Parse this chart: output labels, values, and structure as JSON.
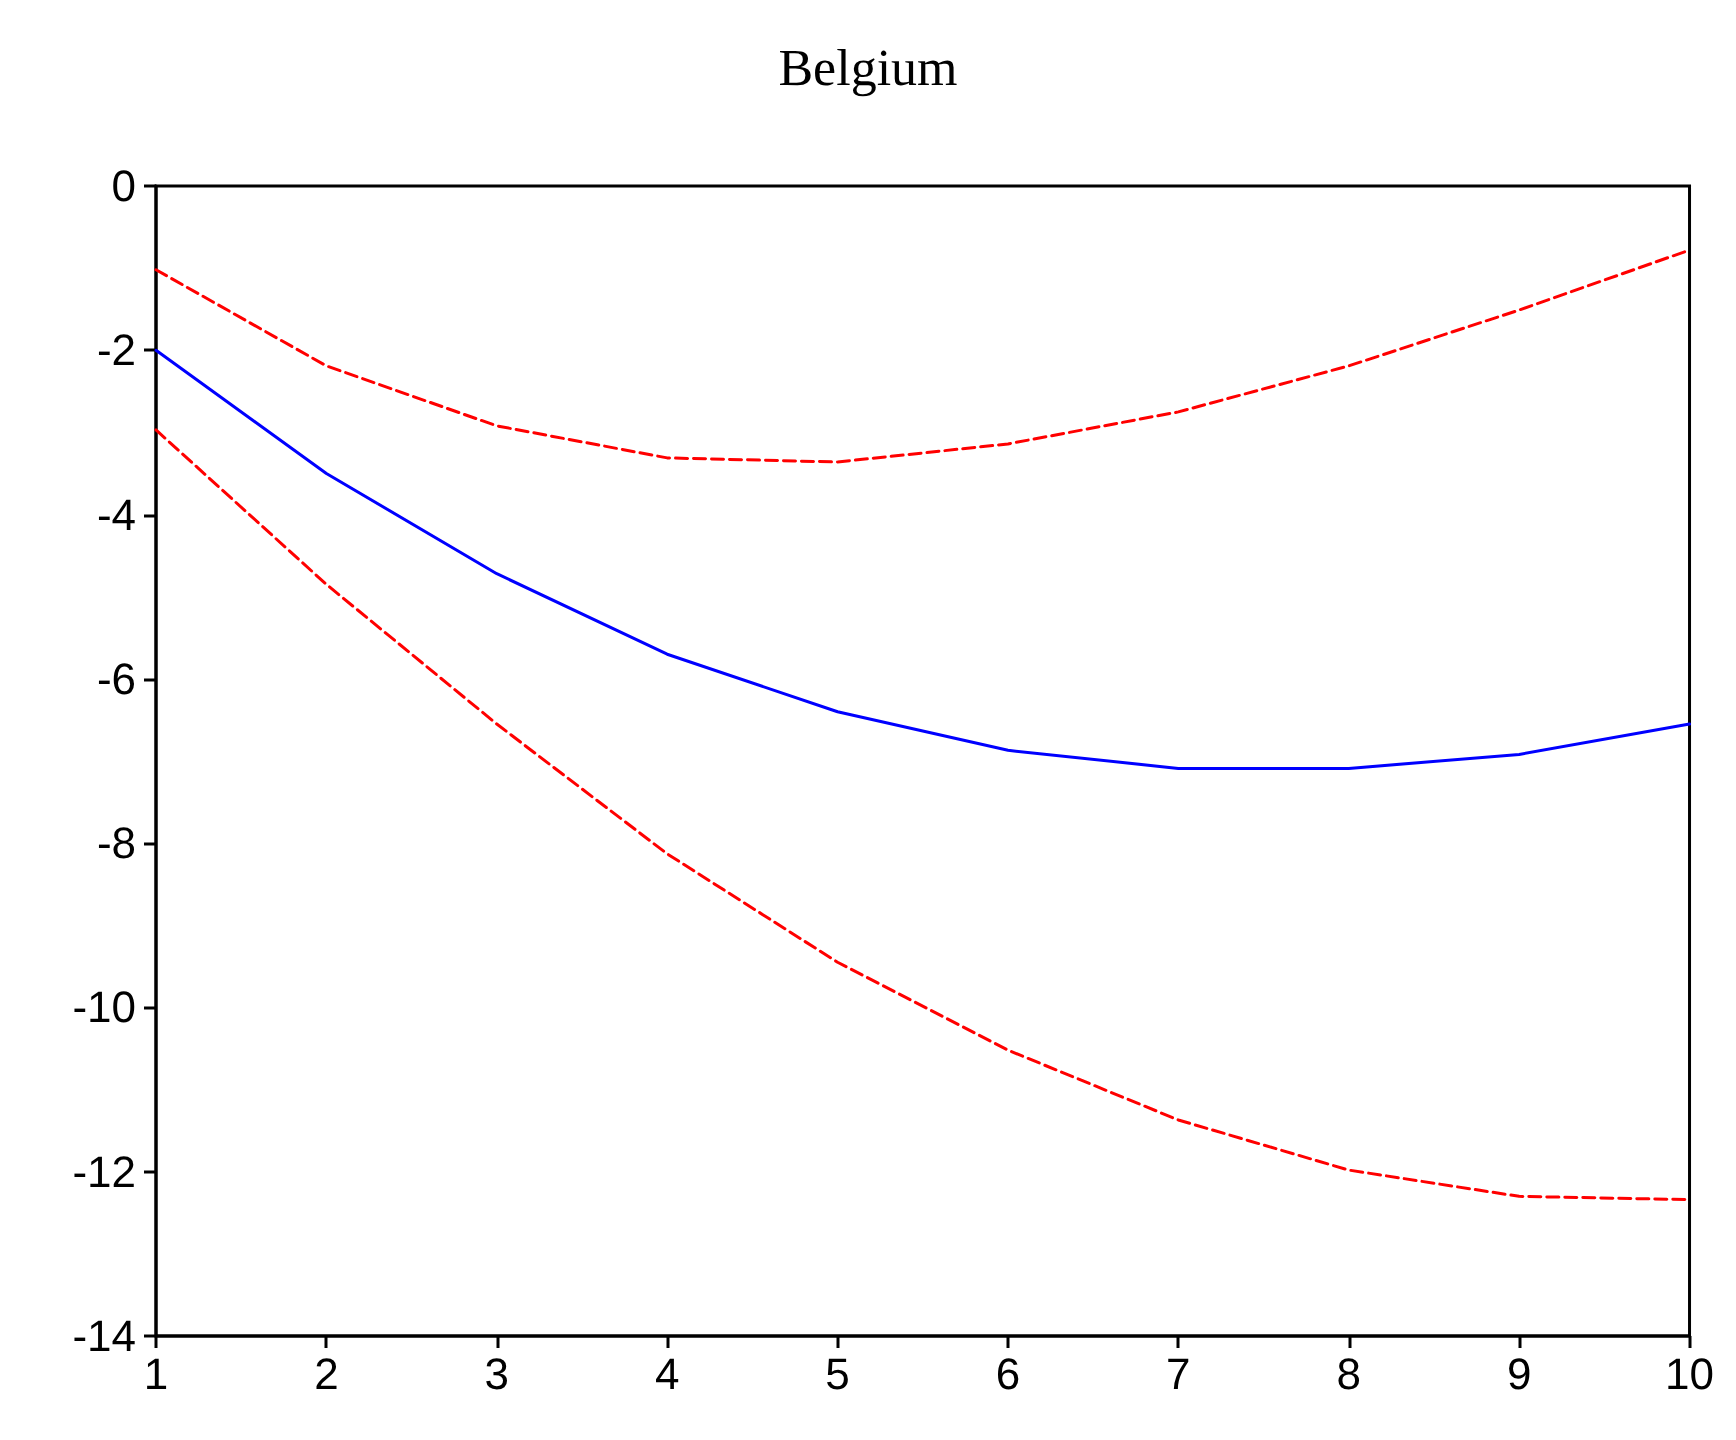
{
  "chart_data": {
    "type": "line",
    "title": "Belgium",
    "x": [
      1,
      2,
      3,
      4,
      5,
      6,
      7,
      8,
      9,
      10
    ],
    "series": [
      {
        "color": "#0000ff",
        "line_style": "solid",
        "values": [
          -2.0,
          -3.5,
          -4.72,
          -5.7,
          -6.4,
          -6.87,
          -7.09,
          -7.09,
          -6.92,
          -6.55
        ]
      },
      {
        "color": "#ff0000",
        "line_style": "dashed",
        "values": [
          -1.02,
          -2.19,
          -2.92,
          -3.31,
          -3.36,
          -3.14,
          -2.75,
          -2.19,
          -1.51,
          -0.78
        ]
      },
      {
        "color": "#ff0000",
        "line_style": "dashed",
        "values": [
          -2.97,
          -4.85,
          -6.55,
          -8.13,
          -9.45,
          -10.52,
          -11.37,
          -11.98,
          -12.3,
          -12.34
        ]
      }
    ],
    "xlim": [
      1,
      10
    ],
    "xticks": [
      1,
      2,
      3,
      4,
      5,
      6,
      7,
      8,
      9,
      10
    ],
    "ylim": [
      -14,
      0
    ],
    "yticks": [
      -14,
      -12,
      -10,
      -8,
      -6,
      -4,
      -2,
      0
    ],
    "grid": false,
    "marker": "none"
  }
}
